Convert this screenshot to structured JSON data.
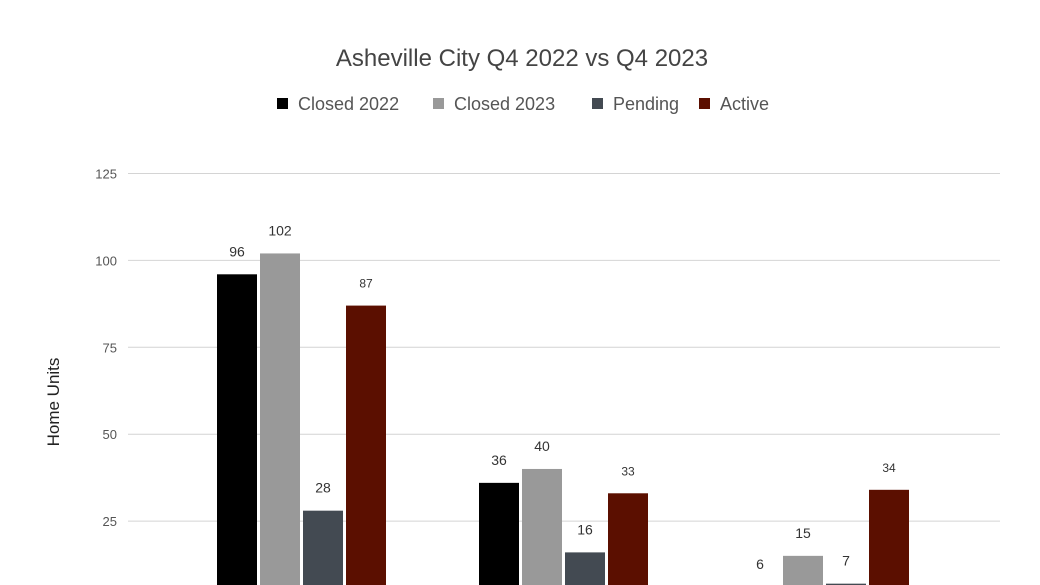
{
  "chart_data": {
    "type": "bar",
    "title": "Asheville City Q4 2022 vs Q4 2023",
    "xlabel": "",
    "ylabel": "Home Units",
    "ylim": [
      0,
      125
    ],
    "yticks": [
      "25",
      "50",
      "75",
      "100",
      "125"
    ],
    "grid": true,
    "legend_position": "top",
    "categories": [
      "",
      "",
      ""
    ],
    "series": [
      {
        "name": "Closed  2022",
        "color": "#000000",
        "values": [
          96,
          36,
          6
        ]
      },
      {
        "name": "Closed  2023",
        "color": "#999999",
        "values": [
          102,
          40,
          15
        ]
      },
      {
        "name": "Pending",
        "color": "#434a52",
        "values": [
          28,
          16,
          7
        ]
      },
      {
        "name": "Active",
        "color": "#5b0f00",
        "values": [
          87,
          33,
          34
        ]
      }
    ]
  }
}
